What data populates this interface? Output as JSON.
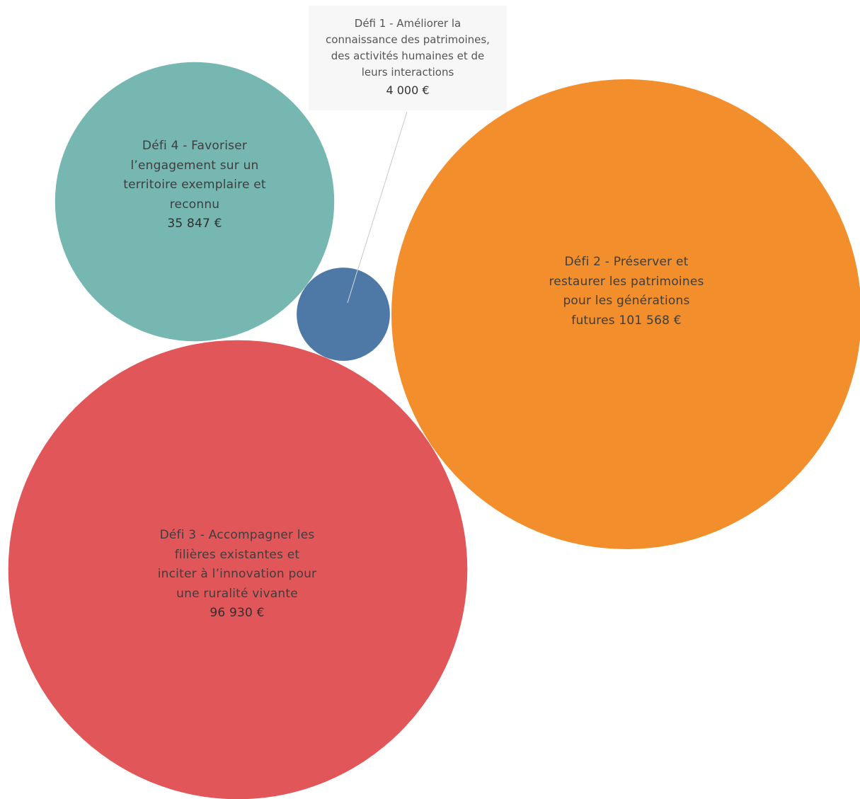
{
  "chart_data": {
    "type": "bubble",
    "title": "",
    "currency": "€",
    "items": [
      {
        "id": "defi1",
        "label": "Défi 1 - Améliorer la connaissance des patrimoines, des activités humaines et de leurs interactions",
        "label_lines": [
          "Défi 1 - Améliorer la",
          "connaissance des patrimoines,",
          "des activités humaines et de",
          "leurs interactions"
        ],
        "value": 4000,
        "value_text": "4 000 €",
        "color": "#4e79a7"
      },
      {
        "id": "defi2",
        "label": "Défi 2 - Préserver et restaurer les patrimoines pour les générations futures",
        "label_lines": [
          "Défi 2 - Préserver et",
          "restaurer les patrimoines",
          "pour les générations",
          "futures 101 568 €"
        ],
        "value": 101568,
        "value_text": "101 568 €",
        "color": "#f28e2b"
      },
      {
        "id": "defi3",
        "label": "Défi 3 - Accompagner les filières existantes et inciter à l'innovation pour une ruralité vivante",
        "label_lines": [
          "Défi 3 - Accompagner les",
          "filières existantes et",
          "inciter à l’innovation pour",
          "une ruralité vivante"
        ],
        "value": 96930,
        "value_text": "96 930 €",
        "color": "#e15759"
      },
      {
        "id": "defi4",
        "label": "Défi 4 - Favoriser l'engagement sur un territoire exemplaire et reconnu",
        "label_lines": [
          "Défi 4 - Favoriser",
          "l’engagement sur un",
          "territoire exemplaire et",
          "reconnu"
        ],
        "value": 35847,
        "value_text": "35 847 €",
        "color": "#76b7b2"
      }
    ]
  }
}
